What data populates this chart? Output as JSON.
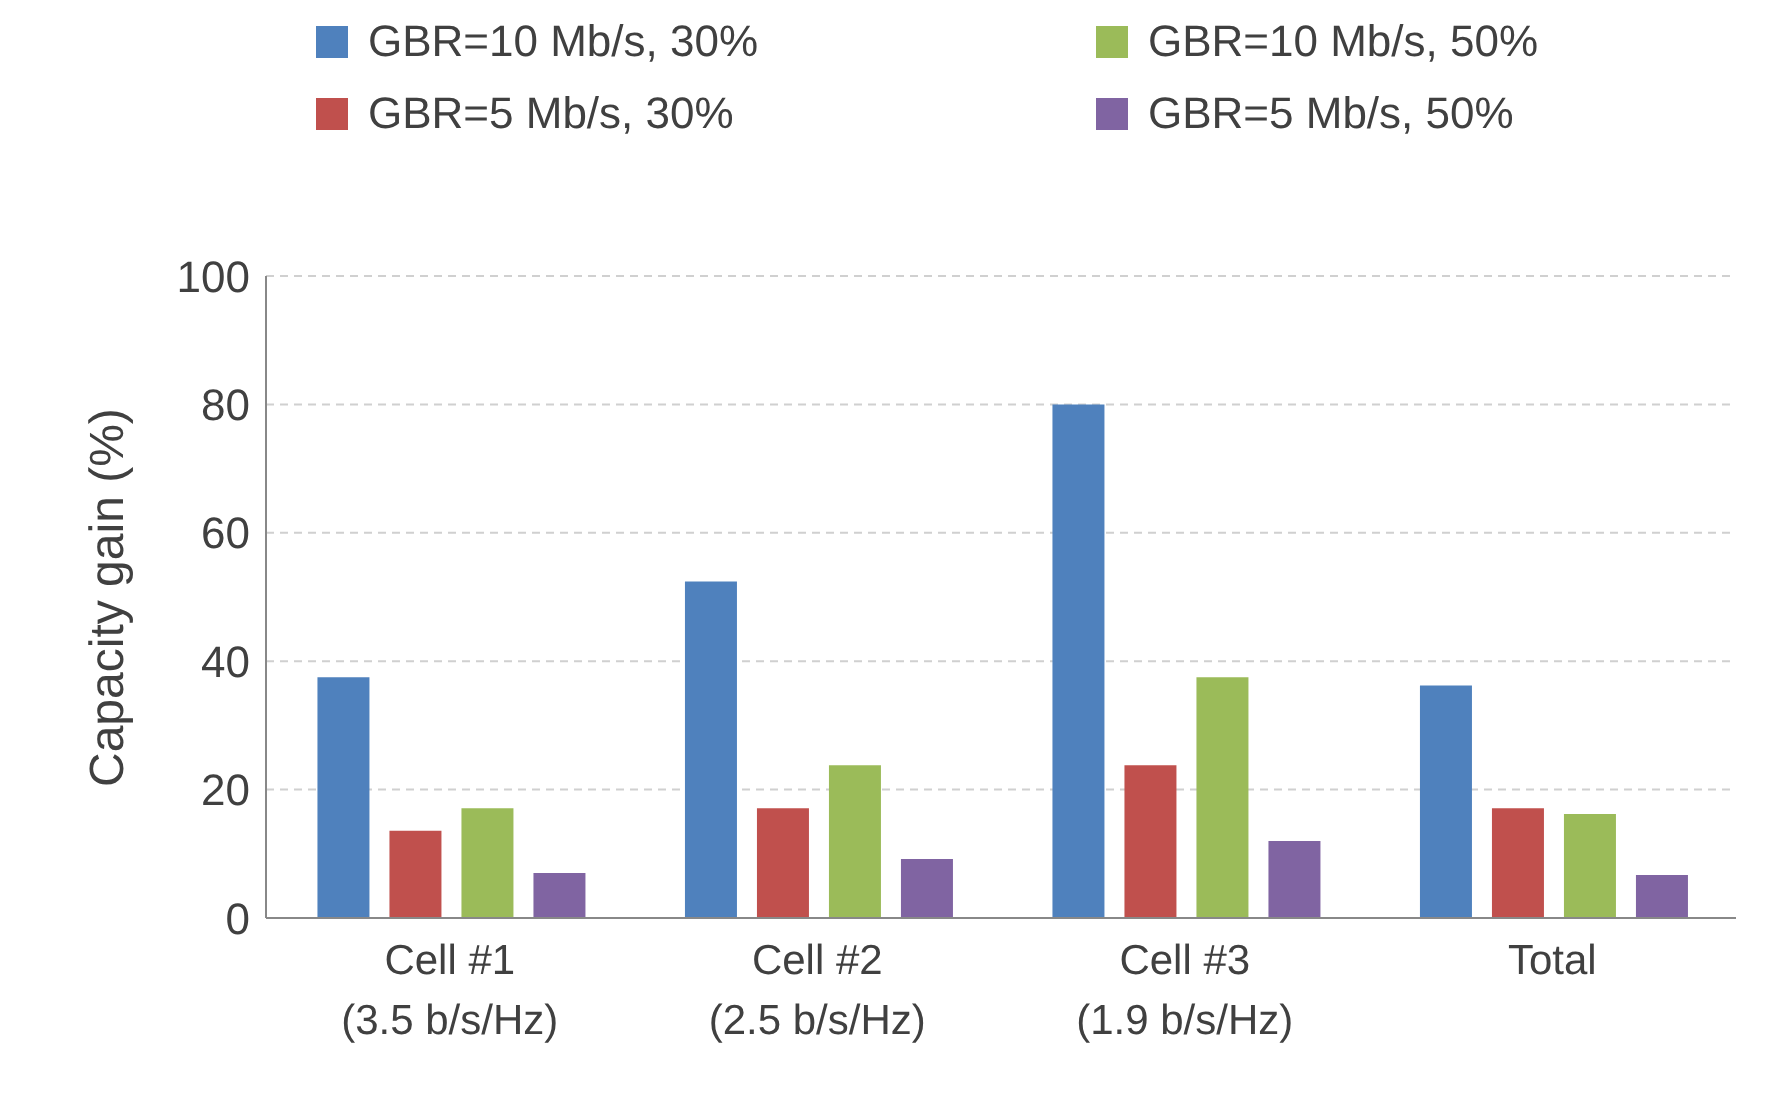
{
  "chart_data": {
    "type": "bar",
    "ylabel": "Capacity gain (%)",
    "categories": [
      "Cell #1\n(3.5 b/s/Hz)",
      "Cell #2\n(2.5 b/s/Hz)",
      "Cell #3\n(1.9 b/s/Hz)",
      "Total"
    ],
    "series": [
      {
        "name": "GBR=10 Mb/s, 30%",
        "color": "#4f81bd",
        "values": [
          37.5,
          52.4,
          80,
          36.2
        ]
      },
      {
        "name": "GBR=5 Mb/s, 30%",
        "color": "#c0504d",
        "values": [
          13.6,
          17.1,
          23.8,
          17.1
        ]
      },
      {
        "name": "GBR=10 Mb/s, 50%",
        "color": "#9bbb59",
        "values": [
          17.1,
          23.8,
          37.5,
          16.2
        ]
      },
      {
        "name": "GBR=5 Mb/s, 50%",
        "color": "#8064a2",
        "values": [
          7,
          9.2,
          12,
          6.7
        ]
      }
    ],
    "ylim": [
      0,
      100
    ],
    "yticks": [
      0,
      20,
      40,
      60,
      80,
      100
    ],
    "grid": "y",
    "legend": "top"
  }
}
